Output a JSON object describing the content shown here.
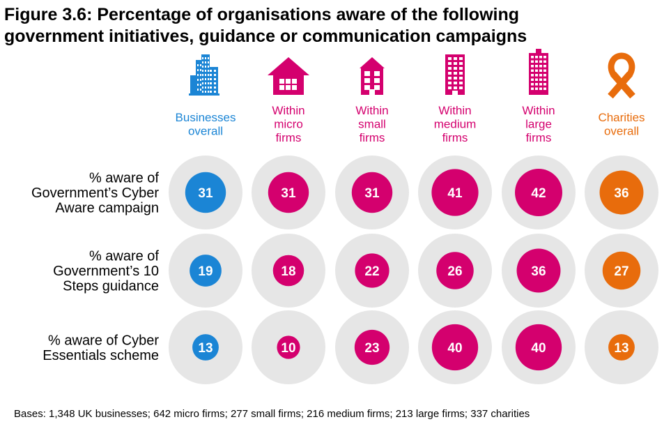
{
  "title": {
    "line1": "Figure 3.6: Percentage of organisations aware of the following",
    "line2": "government initiatives, guidance or communication campaigns"
  },
  "colors": {
    "businesses": "#1b85d5",
    "firms": "#d4006e",
    "charities": "#e86c0c",
    "outer_circle": "#e6e6e6"
  },
  "chart_data": {
    "type": "bubble",
    "columns": [
      {
        "label": [
          "Businesses",
          "overall"
        ],
        "icon": "office-buildings-icon",
        "color_key": "businesses"
      },
      {
        "label": [
          "Within",
          "micro",
          "firms"
        ],
        "icon": "house-icon",
        "color_key": "firms"
      },
      {
        "label": [
          "Within",
          "small",
          "firms"
        ],
        "icon": "small-building-icon",
        "color_key": "firms"
      },
      {
        "label": [
          "Within",
          "medium",
          "firms"
        ],
        "icon": "medium-building-icon",
        "color_key": "firms"
      },
      {
        "label": [
          "Within",
          "large",
          "firms"
        ],
        "icon": "large-building-icon",
        "color_key": "firms"
      },
      {
        "label": [
          "Charities",
          "overall"
        ],
        "icon": "ribbon-icon",
        "color_key": "charities"
      }
    ],
    "rows": [
      {
        "label": [
          "% aware of",
          "Government’s Cyber",
          "Aware campaign"
        ],
        "values": [
          31,
          31,
          31,
          41,
          42,
          36
        ]
      },
      {
        "label": [
          "% aware of",
          "Government’s 10",
          "Steps guidance"
        ],
        "values": [
          19,
          18,
          22,
          26,
          36,
          27
        ]
      },
      {
        "label": [
          "% aware of Cyber",
          "Essentials scheme"
        ],
        "values": [
          13,
          10,
          23,
          40,
          40,
          13
        ]
      }
    ],
    "value_range": [
      0,
      100
    ]
  },
  "footer": {
    "bases": "Bases: 1,348 UK businesses; 642 micro firms; 277 small firms; 216 medium firms; 213 large firms; 337 charities"
  }
}
